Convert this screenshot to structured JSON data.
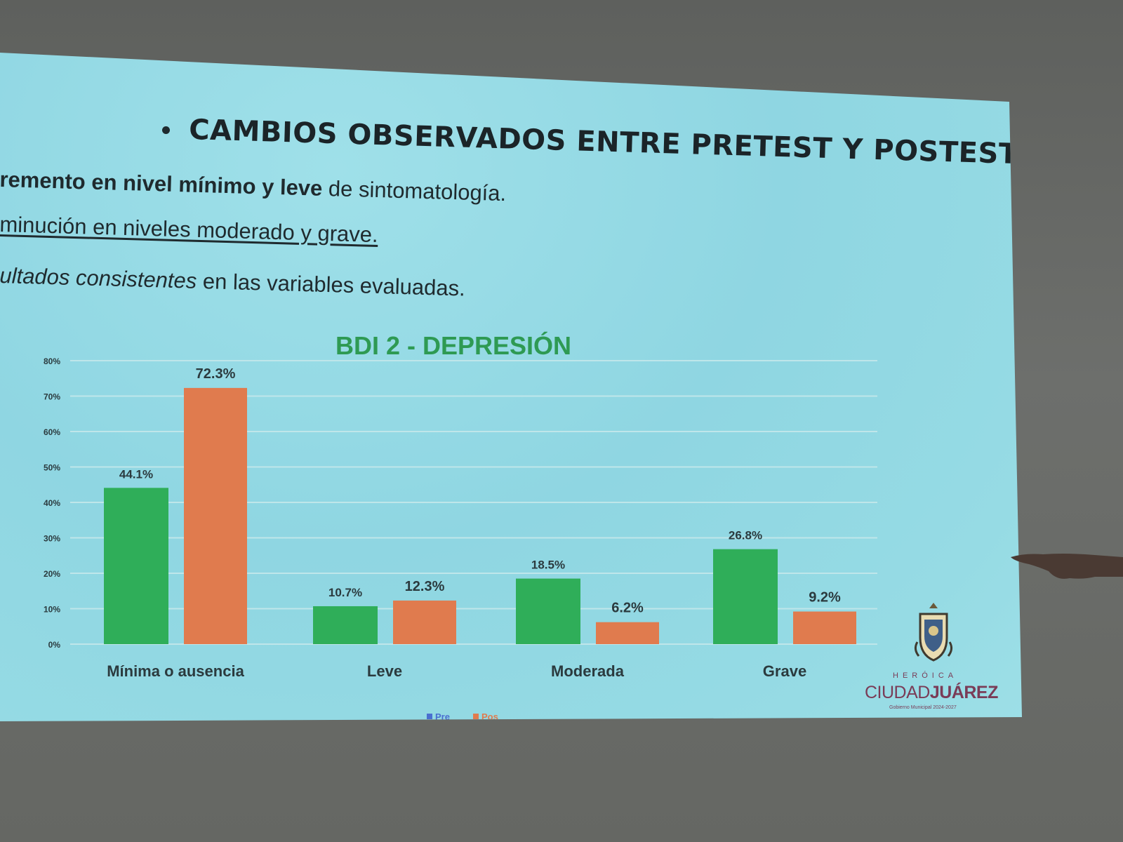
{
  "slide": {
    "title": "CAMBIOS OBSERVADOS ENTRE PRETEST Y POSTEST",
    "line1_bold": "remento en nivel mínimo y leve",
    "line1_rest": " de sintomatología.",
    "line2": "minución en niveles moderado y grave.",
    "line3_italic": "ultados consistentes",
    "line3_rest": " en las variables evaluadas."
  },
  "logo": {
    "small": "HERÓICA",
    "name_regular": "CIUDAD",
    "name_bold": "JUÁREZ",
    "subtitle": "Gobierno Municipal 2024-2027"
  },
  "colors": {
    "pre": "#2fae59",
    "pos": "#e07b4e",
    "title": "#2e9a53",
    "grid": "#bfe6ea",
    "axis_text": "#2b3a3e"
  },
  "chart_data": {
    "type": "bar",
    "title": "BDI 2 - DEPRESIÓN",
    "categories": [
      "Mínima o ausencia",
      "Leve",
      "Moderada",
      "Grave"
    ],
    "series": [
      {
        "name": "Pre",
        "values": [
          44.1,
          10.7,
          18.5,
          26.8
        ],
        "labels": [
          "44.1%",
          "10.7%",
          "18.5%",
          "26.8%"
        ]
      },
      {
        "name": "Pos",
        "values": [
          72.3,
          12.3,
          6.2,
          9.2
        ],
        "labels": [
          "72.3%",
          "12.3%",
          "6.2%",
          "9.2%"
        ]
      }
    ],
    "yticks": [
      "0%",
      "10%",
      "20%",
      "30%",
      "40%",
      "50%",
      "60%",
      "70%",
      "80%"
    ],
    "ylim": [
      0,
      80
    ],
    "grid": true,
    "legend": "bottom"
  }
}
